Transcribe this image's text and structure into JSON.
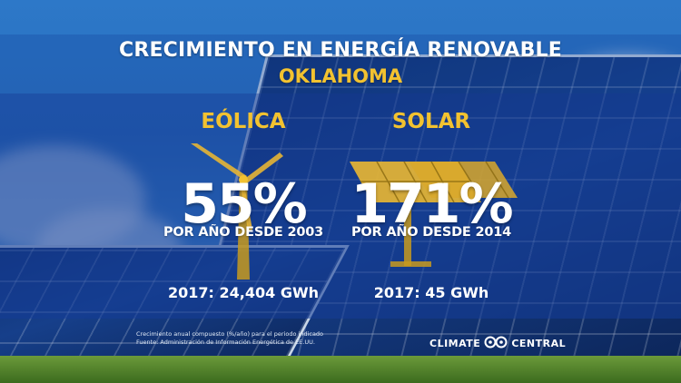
{
  "title": "CRECIMIENTO EN ENERGÍA RENOVABLE",
  "subtitle": "OKLAHOMA",
  "wind": {
    "heading": "EÓLICA",
    "icon": "wind-turbine-icon",
    "growth": "55%",
    "since": "POR AÑO DESDE 2003",
    "year_value": "2017: 24,404 GWh"
  },
  "solar": {
    "heading": "SOLAR",
    "icon": "solar-panel-icon",
    "growth": "171%",
    "since": "POR AÑO DESDE 2014",
    "year_value": "2017: 45 GWh"
  },
  "footnote": {
    "line1": "Crecimiento anual compuesto (%/año) para el periodo indicado",
    "line2": "Fuente: Administración de Información Energética de EE.UU."
  },
  "brand": {
    "left": "CLIMATE",
    "right": "CENTRAL",
    "logo": "climate-central-logo-icon"
  },
  "colors": {
    "accent": "#f2c230",
    "text": "#ffffff",
    "band": "#143c96"
  }
}
